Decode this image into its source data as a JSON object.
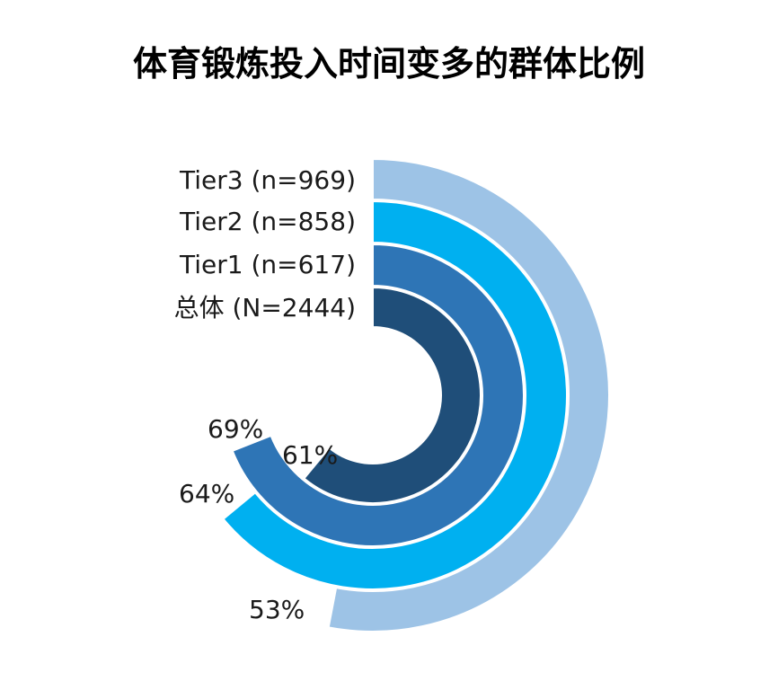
{
  "chart_data": {
    "type": "radial-bar",
    "title": "体育锻炼投入时间变多的群体比例",
    "categories": [
      "Tier3 (n=969)",
      "Tier2 (n=858)",
      "Tier1 (n=617)",
      "总体 (N=2444)"
    ],
    "values": [
      53,
      64,
      69,
      61
    ],
    "value_labels": [
      "53%",
      "64%",
      "69%",
      "61%"
    ],
    "max": 100,
    "colors": [
      "#9DC3E6",
      "#00B0F0",
      "#2E75B6",
      "#1F4E79"
    ],
    "legend": "left-labels"
  }
}
